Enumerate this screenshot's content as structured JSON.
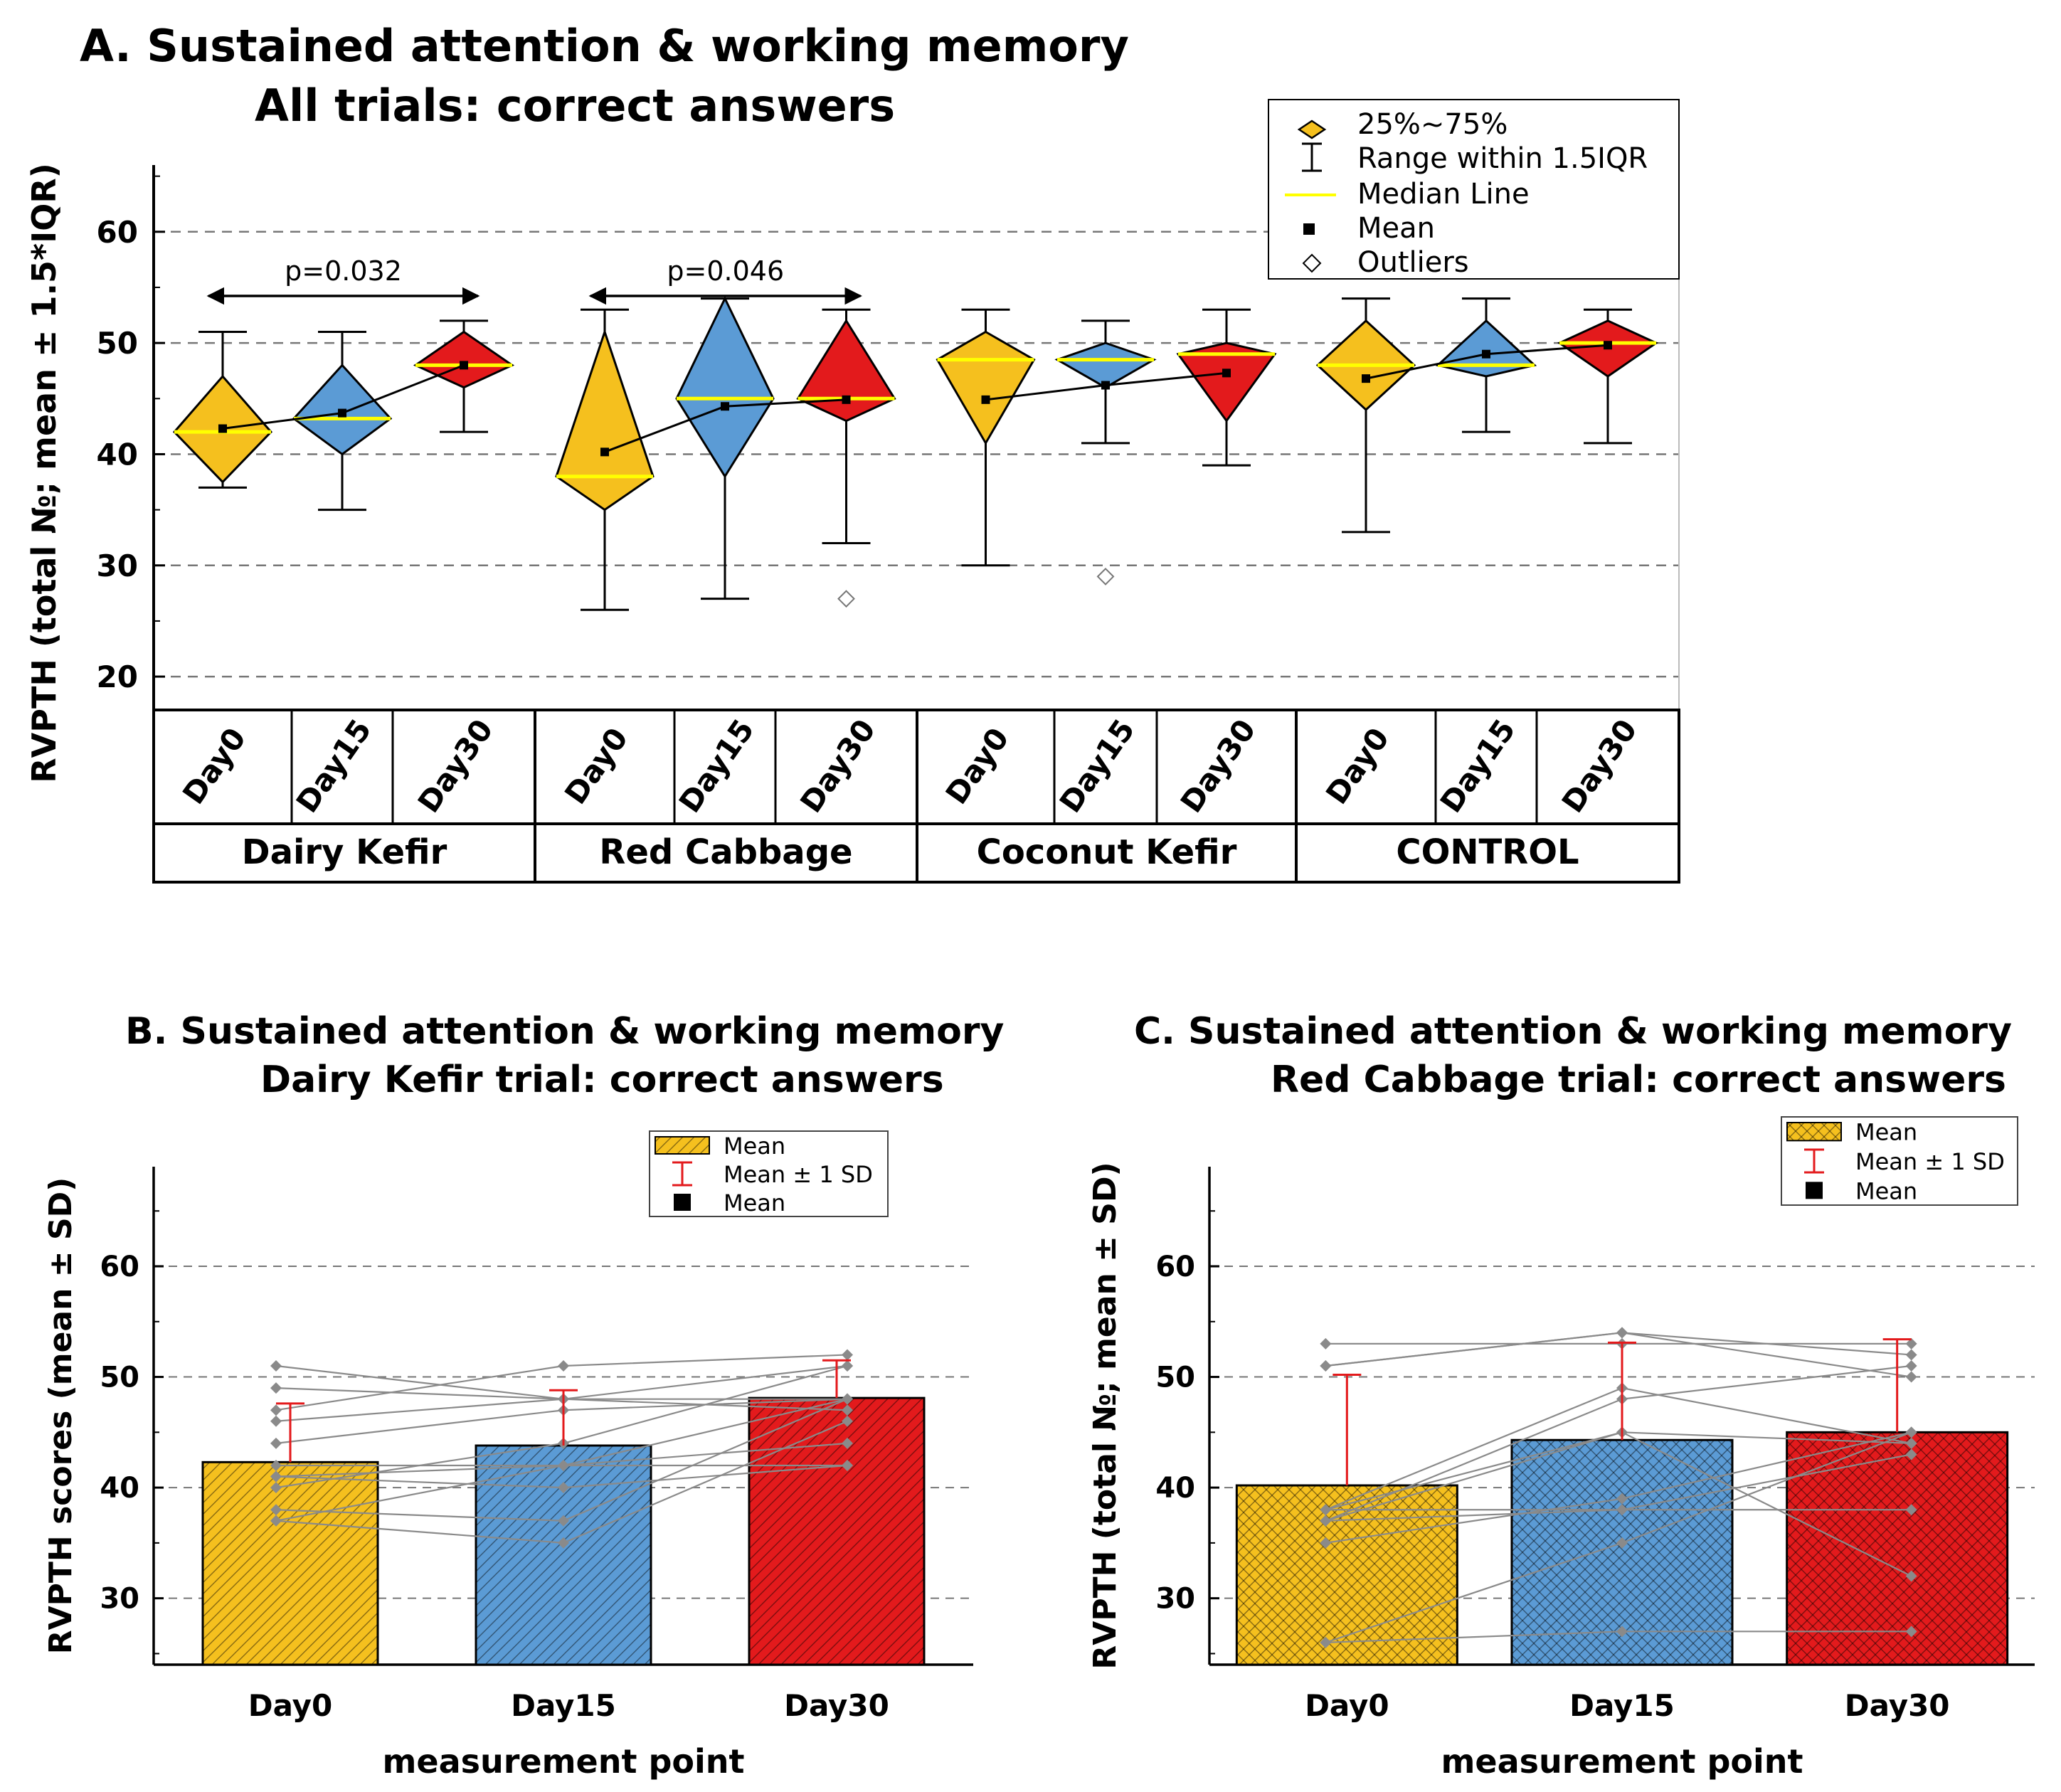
{
  "chart_data": [
    {
      "panel": "A",
      "type": "box",
      "title": "A. Sustained attention & working memory",
      "subtitle": "All trials: correct answers",
      "ylabel": "RVPTH (total №; mean ± 1.5*IQR)",
      "ylim": [
        17,
        66
      ],
      "yticks": [
        20,
        30,
        40,
        50,
        60
      ],
      "grid": true,
      "legend_placement": "top-right",
      "legend": [
        "25%~75%",
        "Range within 1.5IQR",
        "Median Line",
        "Mean",
        "Outliers"
      ],
      "groups": [
        {
          "name": "Dairy Kefir",
          "categories": [
            "Day0",
            "Day15",
            "Day30"
          ],
          "boxes": [
            {
              "q1": 37.5,
              "q3": 47,
              "median": 42,
              "mean": 42.3,
              "wmin": 37,
              "wmax": 51,
              "outliers": []
            },
            {
              "q1": 40,
              "q3": 48,
              "median": 43.2,
              "mean": 43.7,
              "wmin": 35,
              "wmax": 51,
              "outliers": []
            },
            {
              "q1": 46,
              "q3": 51,
              "median": 48,
              "mean": 48.0,
              "wmin": 42,
              "wmax": 52,
              "outliers": []
            }
          ],
          "annotation": {
            "text": "p=0.032",
            "from": 0,
            "to": 2
          }
        },
        {
          "name": "Red Cabbage",
          "categories": [
            "Day0",
            "Day15",
            "Day30"
          ],
          "boxes": [
            {
              "q1": 35,
              "q3": 51,
              "median": 38,
              "mean": 40.2,
              "wmin": 26,
              "wmax": 53,
              "outliers": []
            },
            {
              "q1": 38,
              "q3": 54,
              "median": 45,
              "mean": 44.3,
              "wmin": 27,
              "wmax": 54,
              "outliers": []
            },
            {
              "q1": 43,
              "q3": 52,
              "median": 45,
              "mean": 44.9,
              "wmin": 32,
              "wmax": 53,
              "outliers": [
                27
              ]
            }
          ],
          "annotation": {
            "text": "p=0.046",
            "from": 0,
            "to": 2
          }
        },
        {
          "name": "Coconut Kefir",
          "categories": [
            "Day0",
            "Day15",
            "Day30"
          ],
          "boxes": [
            {
              "q1": 41,
              "q3": 51,
              "median": 48.5,
              "mean": 44.9,
              "wmin": 30,
              "wmax": 53,
              "outliers": []
            },
            {
              "q1": 46,
              "q3": 50,
              "median": 48.5,
              "mean": 46.2,
              "wmin": 41,
              "wmax": 52,
              "outliers": [
                29
              ]
            },
            {
              "q1": 43,
              "q3": 50,
              "median": 49,
              "mean": 47.3,
              "wmin": 39,
              "wmax": 53,
              "outliers": []
            }
          ]
        },
        {
          "name": "CONTROL",
          "categories": [
            "Day0",
            "Day15",
            "Day30"
          ],
          "boxes": [
            {
              "q1": 44,
              "q3": 52,
              "median": 48,
              "mean": 46.8,
              "wmin": 33,
              "wmax": 54,
              "outliers": []
            },
            {
              "q1": 47,
              "q3": 52,
              "median": 48,
              "mean": 49.0,
              "wmin": 42,
              "wmax": 54,
              "outliers": []
            },
            {
              "q1": 47,
              "q3": 52,
              "median": 50,
              "mean": 49.8,
              "wmin": 41,
              "wmax": 53,
              "outliers": []
            }
          ]
        }
      ],
      "colors": {
        "Day0": "#F5C01E",
        "Day15": "#5B9BD5",
        "Day30": "#E31A1C",
        "median": "#FFFF00"
      }
    },
    {
      "panel": "B",
      "type": "bar",
      "title": "B. Sustained attention & working memory",
      "subtitle": "Dairy Kefir trial: correct answers",
      "xlabel": "measurement point",
      "ylabel": "RVPTH scores (mean ± SD)",
      "categories": [
        "Day0",
        "Day15",
        "Day30"
      ],
      "values": [
        42.3,
        43.8,
        48.1
      ],
      "sd": [
        5.3,
        5.0,
        3.4
      ],
      "ylim": [
        24,
        69
      ],
      "yticks": [
        30,
        40,
        50,
        60
      ],
      "grid": true,
      "legend_placement": "top-right",
      "legend": [
        "Mean",
        "Mean ± 1 SD",
        "Mean"
      ],
      "individual_lines": [
        [
          51,
          48,
          47
        ],
        [
          49,
          48,
          51
        ],
        [
          47,
          51,
          52
        ],
        [
          46,
          48,
          48
        ],
        [
          44,
          47,
          48
        ],
        [
          41,
          40,
          42
        ],
        [
          40,
          44,
          51
        ],
        [
          37,
          42,
          44
        ],
        [
          37,
          35,
          46
        ],
        [
          42,
          42,
          42
        ],
        [
          38,
          37,
          48
        ],
        [
          41,
          42,
          48
        ]
      ],
      "colors": [
        "#F5C01E",
        "#5B9BD5",
        "#E31A1C"
      ]
    },
    {
      "panel": "C",
      "type": "bar",
      "title": "C. Sustained attention & working memory",
      "subtitle": "Red Cabbage trial: correct answers",
      "xlabel": "measurement point",
      "ylabel": "RVPTH (total №; mean ± SD)",
      "categories": [
        "Day0",
        "Day15",
        "Day30"
      ],
      "values": [
        40.2,
        44.3,
        45.0
      ],
      "sd": [
        10.0,
        8.8,
        8.4
      ],
      "ylim": [
        24,
        69
      ],
      "yticks": [
        30,
        40,
        50,
        60
      ],
      "grid": true,
      "legend_placement": "top-right",
      "legend": [
        "Mean",
        "Mean ± 1 SD",
        "Mean"
      ],
      "individual_lines": [
        [
          53,
          53,
          53
        ],
        [
          51,
          54,
          52
        ],
        [
          51,
          54,
          50
        ],
        [
          38,
          49,
          44
        ],
        [
          38,
          45,
          44
        ],
        [
          37,
          38,
          43
        ],
        [
          35,
          39,
          45
        ],
        [
          37,
          48,
          51
        ],
        [
          26,
          35,
          45
        ],
        [
          26,
          27,
          27
        ],
        [
          37,
          45,
          32
        ],
        [
          38,
          38,
          38
        ]
      ],
      "colors": [
        "#F5C01E",
        "#5B9BD5",
        "#E31A1C"
      ]
    }
  ]
}
